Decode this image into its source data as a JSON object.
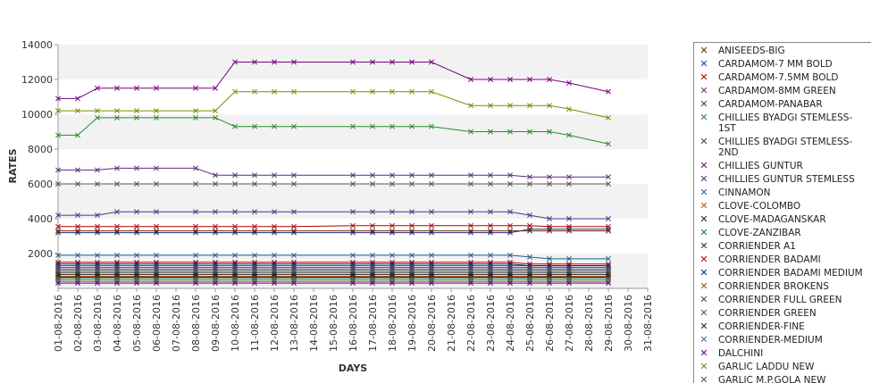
{
  "chart_data": {
    "type": "line",
    "title": "",
    "xlabel": "DAYS",
    "ylabel": "RATES",
    "ylim": [
      0,
      14000
    ],
    "yticks": [
      2000,
      4000,
      6000,
      8000,
      10000,
      12000,
      14000
    ],
    "grid": "alternating horizontal bands",
    "legend_position": "right",
    "categories": [
      "01-08-2016",
      "02-08-2016",
      "03-08-2016",
      "04-08-2016",
      "05-08-2016",
      "06-08-2016",
      "07-08-2016",
      "08-08-2016",
      "09-08-2016",
      "10-08-2016",
      "11-08-2016",
      "12-08-2016",
      "13-08-2016",
      "14-08-2016",
      "15-08-2016",
      "16-08-2016",
      "17-08-2016",
      "18-08-2016",
      "19-08-2016",
      "20-08-2016",
      "21-08-2016",
      "22-08-2016",
      "23-08-2016",
      "24-08-2016",
      "25-08-2016",
      "26-08-2016",
      "27-08-2016",
      "28-08-2016",
      "29-08-2016",
      "30-08-2016",
      "31-08-2016"
    ],
    "series": [
      {
        "name": "ANISEEDS-BIG",
        "color": "#6b2d00",
        "values": [
          3300,
          3300,
          3300,
          3300,
          3300,
          3300,
          null,
          3300,
          3300,
          3300,
          3300,
          3300,
          3300,
          null,
          null,
          3300,
          3300,
          3300,
          3300,
          3300,
          null,
          3300,
          3300,
          3300,
          3300,
          3300,
          3300,
          null,
          3300,
          null,
          null
        ]
      },
      {
        "name": "CARDAMOM-7 MM BOLD",
        "color": "#1f3f9f",
        "values": [
          1100,
          1100,
          1100,
          1100,
          1100,
          1100,
          null,
          1100,
          1100,
          1100,
          1100,
          1100,
          1100,
          null,
          null,
          1100,
          1100,
          1100,
          1100,
          1100,
          null,
          1100,
          1100,
          1100,
          1100,
          1100,
          1100,
          null,
          1100,
          null,
          null
        ]
      },
      {
        "name": "CARDAMOM-7.5MM BOLD",
        "color": "#b00000",
        "values": [
          3550,
          3550,
          3550,
          3550,
          3550,
          3550,
          null,
          3550,
          3550,
          3550,
          3550,
          3550,
          3550,
          null,
          null,
          3600,
          3600,
          3600,
          3600,
          3600,
          null,
          3600,
          3600,
          3600,
          3600,
          3550,
          3550,
          null,
          3550,
          null,
          null
        ]
      },
      {
        "name": "CARDAMOM-8MM GREEN",
        "color": "#8a1f8a",
        "values": [
          1300,
          1300,
          1300,
          1300,
          1300,
          1300,
          null,
          1300,
          1300,
          1300,
          1300,
          1300,
          1300,
          null,
          null,
          1300,
          1300,
          1300,
          1300,
          1300,
          null,
          1300,
          1300,
          1300,
          1300,
          1300,
          1300,
          null,
          1300,
          null,
          null
        ]
      },
      {
        "name": "CARDAMOM-PANABAR",
        "color": "#444444",
        "values": [
          900,
          900,
          900,
          900,
          900,
          900,
          null,
          900,
          900,
          900,
          900,
          900,
          900,
          null,
          null,
          900,
          900,
          900,
          900,
          900,
          null,
          900,
          900,
          900,
          900,
          900,
          900,
          null,
          900,
          null,
          null
        ]
      },
      {
        "name": "CHILLIES BYADGI STEMLESS-1ST",
        "color": "#2a8a2a",
        "values": [
          8800,
          8800,
          9800,
          9800,
          9800,
          9800,
          null,
          9800,
          9800,
          9300,
          9300,
          9300,
          9300,
          null,
          null,
          9300,
          9300,
          9300,
          9300,
          9300,
          null,
          9000,
          9000,
          9000,
          9000,
          9000,
          8800,
          null,
          8300,
          null,
          null
        ]
      },
      {
        "name": "CHILLIES BYADGI STEMLESS-2ND",
        "color": "#5b2b7a",
        "values": [
          6800,
          6800,
          6800,
          6900,
          6900,
          6900,
          null,
          6900,
          6500,
          6500,
          6500,
          6500,
          6500,
          null,
          null,
          6500,
          6500,
          6500,
          6500,
          6500,
          null,
          6500,
          6500,
          6500,
          6400,
          6400,
          6400,
          null,
          6400,
          null,
          null
        ]
      },
      {
        "name": "CHILLIES GUNTUR",
        "color": "#7a0080",
        "values": [
          10900,
          10900,
          11500,
          11500,
          11500,
          11500,
          null,
          11500,
          11500,
          13000,
          13000,
          13000,
          13000,
          null,
          null,
          13000,
          13000,
          13000,
          13000,
          13000,
          null,
          12000,
          12000,
          12000,
          12000,
          12000,
          11800,
          null,
          11300,
          null,
          null
        ]
      },
      {
        "name": "CHILLIES GUNTUR STEMLESS",
        "color": "#3b3b8a",
        "values": [
          4200,
          4200,
          4200,
          4400,
          4400,
          4400,
          null,
          4400,
          4400,
          4400,
          4400,
          4400,
          4400,
          null,
          null,
          4400,
          4400,
          4400,
          4400,
          4400,
          null,
          4400,
          4400,
          4400,
          4200,
          4000,
          4000,
          null,
          4000,
          null,
          null
        ]
      },
      {
        "name": "CINNAMON",
        "color": "#1f5f8f",
        "values": [
          1900,
          1900,
          1900,
          1900,
          1900,
          1900,
          null,
          1900,
          1900,
          1900,
          1900,
          1900,
          1900,
          null,
          null,
          1900,
          1900,
          1900,
          1900,
          1900,
          null,
          1900,
          1900,
          1900,
          1800,
          1700,
          1700,
          null,
          1700,
          null,
          null
        ]
      },
      {
        "name": "CLOVE-COLOMBO",
        "color": "#c85a00",
        "values": [
          700,
          700,
          700,
          700,
          700,
          700,
          null,
          700,
          700,
          700,
          700,
          700,
          700,
          null,
          null,
          700,
          700,
          700,
          700,
          700,
          null,
          700,
          700,
          700,
          700,
          700,
          700,
          null,
          700,
          null,
          null
        ]
      },
      {
        "name": "CLOVE-MADAGANSKAR",
        "color": "#3a1a00",
        "values": [
          650,
          650,
          650,
          650,
          650,
          650,
          null,
          650,
          650,
          650,
          650,
          650,
          650,
          null,
          null,
          650,
          650,
          650,
          650,
          650,
          null,
          650,
          650,
          650,
          650,
          650,
          650,
          null,
          650,
          null,
          null
        ]
      },
      {
        "name": "CLOVE-ZANZIBAR",
        "color": "#0f6f6f",
        "values": [
          600,
          600,
          600,
          600,
          600,
          600,
          null,
          600,
          600,
          600,
          600,
          600,
          600,
          null,
          null,
          600,
          600,
          600,
          600,
          600,
          null,
          600,
          600,
          600,
          600,
          600,
          600,
          null,
          600,
          null,
          null
        ]
      },
      {
        "name": "CORRIENDER A1",
        "color": "#2a2a6a",
        "values": [
          3200,
          3200,
          3200,
          3200,
          3200,
          3200,
          null,
          3200,
          3200,
          3200,
          3200,
          3200,
          3200,
          null,
          null,
          3200,
          3200,
          3200,
          3200,
          3200,
          null,
          3200,
          3200,
          3200,
          3400,
          3400,
          3400,
          null,
          3400,
          null,
          null
        ]
      },
      {
        "name": "CORRIENDER BADAMI",
        "color": "#c00000",
        "values": [
          1500,
          1500,
          1500,
          1500,
          1500,
          1500,
          null,
          1500,
          1500,
          1500,
          1500,
          1500,
          1500,
          null,
          null,
          1500,
          1500,
          1500,
          1500,
          1500,
          null,
          1500,
          1500,
          1500,
          1400,
          1400,
          1400,
          null,
          1400,
          null,
          null
        ]
      },
      {
        "name": "CORRIENDER BADAMI MEDIUM",
        "color": "#003366",
        "values": [
          1400,
          1400,
          1400,
          1400,
          1400,
          1400,
          null,
          1400,
          1400,
          1400,
          1400,
          1400,
          1400,
          null,
          null,
          1400,
          1400,
          1400,
          1400,
          1400,
          null,
          1400,
          1400,
          1400,
          1300,
          1300,
          1300,
          null,
          1300,
          null,
          null
        ]
      },
      {
        "name": "CORRIENDER BROKENS",
        "color": "#8a5a00",
        "values": [
          500,
          500,
          500,
          500,
          500,
          500,
          null,
          500,
          500,
          500,
          500,
          500,
          500,
          null,
          null,
          500,
          500,
          500,
          500,
          500,
          null,
          500,
          500,
          500,
          500,
          500,
          500,
          null,
          500,
          null,
          null
        ]
      },
      {
        "name": "CORRIENDER FULL GREEN",
        "color": "#5a3a5a",
        "values": [
          1200,
          1200,
          1200,
          1200,
          1200,
          1200,
          null,
          1200,
          1200,
          1200,
          1200,
          1200,
          1200,
          null,
          null,
          1200,
          1200,
          1200,
          1200,
          1200,
          null,
          1200,
          1200,
          1200,
          1200,
          1200,
          1200,
          null,
          1200,
          null,
          null
        ]
      },
      {
        "name": "CORRIENDER GREEN",
        "color": "#555555",
        "values": [
          1000,
          1000,
          1000,
          1000,
          1000,
          1000,
          null,
          1000,
          1000,
          1000,
          1000,
          1000,
          1000,
          null,
          null,
          1000,
          1000,
          1000,
          1000,
          1000,
          null,
          1000,
          1000,
          1000,
          1000,
          1000,
          1000,
          null,
          1000,
          null,
          null
        ]
      },
      {
        "name": "CORRIENDER-FINE",
        "color": "#222222",
        "values": [
          800,
          800,
          800,
          800,
          800,
          800,
          null,
          800,
          800,
          800,
          800,
          800,
          800,
          null,
          null,
          800,
          800,
          800,
          800,
          800,
          null,
          800,
          800,
          800,
          800,
          800,
          800,
          null,
          800,
          null,
          null
        ]
      },
      {
        "name": "CORRIENDER-MEDIUM",
        "color": "#3f6f9f",
        "values": [
          400,
          400,
          400,
          400,
          400,
          400,
          null,
          400,
          400,
          400,
          400,
          400,
          400,
          null,
          null,
          400,
          400,
          400,
          400,
          400,
          null,
          400,
          400,
          400,
          400,
          400,
          400,
          null,
          400,
          null,
          null
        ]
      },
      {
        "name": "DALCHINI",
        "color": "#6a007a",
        "values": [
          300,
          300,
          300,
          300,
          300,
          300,
          null,
          300,
          300,
          300,
          300,
          300,
          300,
          null,
          null,
          300,
          300,
          300,
          300,
          300,
          null,
          300,
          300,
          300,
          300,
          300,
          300,
          null,
          300,
          null,
          null
        ]
      },
      {
        "name": "GARLIC LADDU NEW",
        "color": "#7a8a00",
        "values": [
          10200,
          10200,
          10200,
          10200,
          10200,
          10200,
          null,
          10200,
          10200,
          11300,
          11300,
          11300,
          11300,
          null,
          null,
          11300,
          11300,
          11300,
          11300,
          11300,
          null,
          10500,
          10500,
          10500,
          10500,
          10500,
          10300,
          null,
          9800,
          null,
          null
        ]
      },
      {
        "name": "GARLIC M.P.GOLA NEW",
        "color": "#555555",
        "values": [
          6000,
          6000,
          6000,
          6000,
          6000,
          6000,
          null,
          6000,
          6000,
          6000,
          6000,
          6000,
          6000,
          null,
          null,
          6000,
          6000,
          6000,
          6000,
          6000,
          null,
          6000,
          6000,
          6000,
          6000,
          6000,
          6000,
          null,
          6000,
          null,
          null
        ]
      }
    ]
  }
}
